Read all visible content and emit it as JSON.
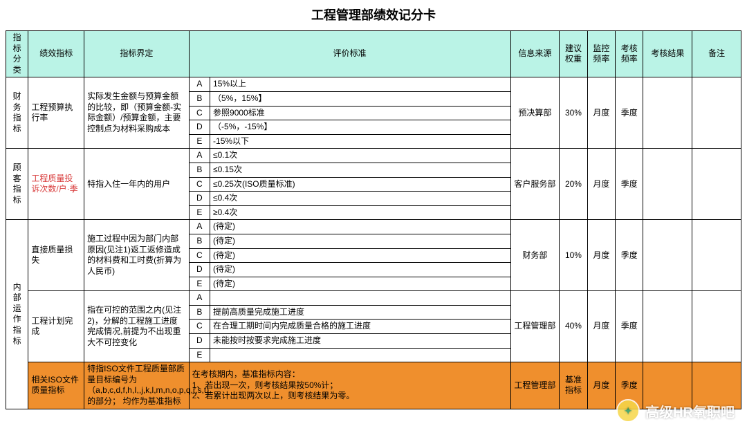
{
  "title": "工程管理部绩效记分卡",
  "headers": {
    "category": "指标分类",
    "indicator": "绩效指标",
    "definition": "指标界定",
    "criteria": "评价标准",
    "source": "信息来源",
    "weight": "建议权重",
    "monitor_freq": "监控频率",
    "assess_freq": "考核频率",
    "result": "考核结果",
    "remark": "备注"
  },
  "sections": [
    {
      "category": "财务指标",
      "indicator": "工程预算执行率",
      "definition": "实际发生金额与预算金额的比较，即（预算金额-实际金额）/预算金额，主要控制点为材料采购成本",
      "criteria": [
        {
          "grade": "A",
          "text": "15%以上"
        },
        {
          "grade": "B",
          "text": "（5%，15%】"
        },
        {
          "grade": "C",
          "text": "参照9000标准"
        },
        {
          "grade": "D",
          "text": "（-5%，-15%】"
        },
        {
          "grade": "E",
          "text": "-15%以下"
        }
      ],
      "source": "预决算部",
      "weight": "30%",
      "monitor": "月度",
      "assess": "季度"
    },
    {
      "category": "顾客指标",
      "indicator": "工程质量投诉次数/户·季",
      "indicator_red": true,
      "definition": "特指入住一年内的用户",
      "criteria": [
        {
          "grade": "A",
          "text": "≤0.1次"
        },
        {
          "grade": "B",
          "text": "≤0.15次"
        },
        {
          "grade": "C",
          "text": "≤0.25次(ISO质量标准)"
        },
        {
          "grade": "D",
          "text": "≤0.4次"
        },
        {
          "grade": "E",
          "text": "≥0.4次"
        }
      ],
      "source": "客户服务部",
      "weight": "20%",
      "monitor": "月度",
      "assess": "季度"
    },
    {
      "category": "内部运作指标",
      "rows": [
        {
          "indicator": "直接质量损失",
          "definition": "施工过程中因为部门内部原因(见注1)返工返修造成的材料费和工时费(折算为人民币)",
          "criteria": [
            {
              "grade": "A",
              "text": "(待定)"
            },
            {
              "grade": "B",
              "text": "(待定)"
            },
            {
              "grade": "C",
              "text": "(待定)"
            },
            {
              "grade": "D",
              "text": "(待定)"
            },
            {
              "grade": "E",
              "text": "(待定)"
            }
          ],
          "source": "财务部",
          "weight": "10%",
          "monitor": "月度",
          "assess": "季度"
        },
        {
          "indicator": "工程计划完成",
          "definition": "指在可控的范围之内(见注2)，分解的工程施工进度完成情况,前提为不出现重大不可控变化",
          "criteria": [
            {
              "grade": "A",
              "text": ""
            },
            {
              "grade": "B",
              "text": "提前高质量完成施工进度"
            },
            {
              "grade": "C",
              "text": "在合理工期时间内完成质量合格的施工进度"
            },
            {
              "grade": "D",
              "text": "未能按时按要求完成施工进度"
            },
            {
              "grade": "E",
              "text": ""
            }
          ],
          "source": "工程管理部",
          "weight": "40%",
          "monitor": "月度",
          "assess": "季度"
        },
        {
          "indicator": "相关ISO文件质量指标",
          "definition": "特指ISO文件工程质量部质量目标编号为（a,b,c,d,f,h,I,,j,k,l,m,n,o,p,q,r,s,t)的部分；  均作为基准指标",
          "criteria_single": "在考核期内，基准指标内容：\n1、若出现一次，则考核结果按50%计；\n2、若累计出现两次以上，则考核结果为零。",
          "source": "工程管理部",
          "weight": "基准指标",
          "monitor": "月度",
          "assess": "季度",
          "orange": true
        }
      ]
    }
  ],
  "watermark": "高级HR氧职吧"
}
